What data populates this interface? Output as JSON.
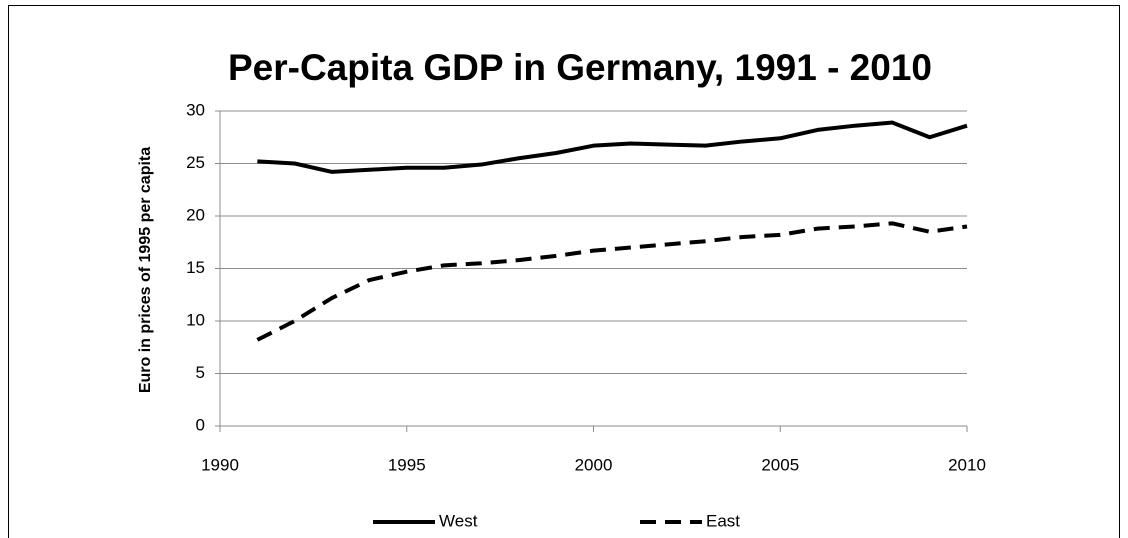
{
  "chart_data": {
    "type": "line",
    "title": "Per-Capita GDP in Germany, 1991 - 2010",
    "y_label": "Euro in prices of 1995 per capita",
    "x": [
      1991,
      1992,
      1993,
      1994,
      1995,
      1996,
      1997,
      1998,
      1999,
      2000,
      2001,
      2002,
      2003,
      2004,
      2005,
      2006,
      2007,
      2008,
      2009,
      2010
    ],
    "series": [
      {
        "name": "West",
        "color": "#000000",
        "dash": "solid",
        "values": [
          25.2,
          25.0,
          24.2,
          24.4,
          24.6,
          24.6,
          24.9,
          25.5,
          26.0,
          26.7,
          26.9,
          26.8,
          26.7,
          27.1,
          27.4,
          28.2,
          28.6,
          28.9,
          27.5,
          28.6
        ]
      },
      {
        "name": "East",
        "color": "#000000",
        "dash": "dashed",
        "values": [
          8.2,
          10.0,
          12.2,
          13.9,
          14.7,
          15.3,
          15.5,
          15.8,
          16.2,
          16.7,
          17.0,
          17.3,
          17.6,
          18.0,
          18.2,
          18.8,
          19.0,
          19.3,
          18.5,
          19.0
        ]
      }
    ],
    "xlim": [
      1990,
      2010
    ],
    "xticks": [
      1990,
      1995,
      2000,
      2005,
      2010
    ],
    "ylim": [
      0,
      30
    ],
    "yticks": [
      0,
      5,
      10,
      15,
      20,
      25,
      30
    ],
    "grid": true,
    "legend": "bottom"
  }
}
